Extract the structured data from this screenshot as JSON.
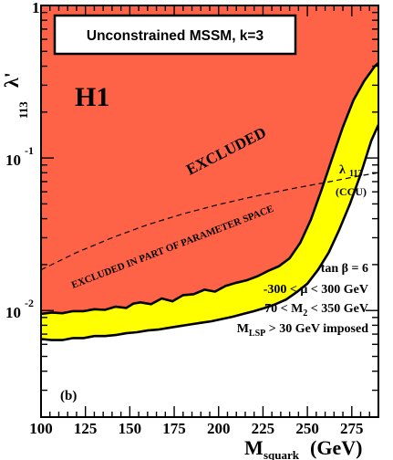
{
  "chart_data": {
    "type": "area",
    "title": "Unconstrained MSSM, k=3",
    "panel_label": "(b)",
    "experiment_label": "H1",
    "xlabel": "M",
    "xlabel_sub": "squark",
    "xlabel_unit": "(GeV)",
    "ylabel": "λ'",
    "ylabel_sub": "113",
    "xlim": [
      100,
      290
    ],
    "ylim": [
      0.002,
      1
    ],
    "yscale": "log",
    "x_ticks": [
      100,
      125,
      150,
      175,
      200,
      225,
      250,
      275
    ],
    "y_ticks": [
      {
        "value": 1,
        "mantissa": "1",
        "exponent": ""
      },
      {
        "value": 0.1,
        "mantissa": "10",
        "exponent": "-1"
      },
      {
        "value": 0.01,
        "mantissa": "10",
        "exponent": "-2"
      }
    ],
    "colors": {
      "excluded": "#ff6347",
      "partial": "#ffff00",
      "frame": "#000000"
    },
    "series": [
      {
        "name": "EXCLUDED",
        "x": [
          100,
          106,
          112,
          118,
          124,
          130,
          136,
          142,
          148,
          152,
          156,
          162,
          168,
          174,
          180,
          186,
          192,
          198,
          204,
          210,
          216,
          222,
          228,
          234,
          240,
          246,
          252,
          258,
          264,
          270,
          276,
          282,
          288,
          290
        ],
        "y": [
          0.0095,
          0.0097,
          0.0096,
          0.0099,
          0.0099,
          0.0102,
          0.0101,
          0.0106,
          0.0104,
          0.0111,
          0.0113,
          0.011,
          0.012,
          0.0115,
          0.0126,
          0.0128,
          0.0137,
          0.0133,
          0.0145,
          0.0152,
          0.0158,
          0.0168,
          0.0182,
          0.0195,
          0.022,
          0.0278,
          0.0395,
          0.062,
          0.1,
          0.16,
          0.24,
          0.32,
          0.4,
          0.42
        ]
      },
      {
        "name": "EXCLUDED IN PART OF PARAMETER SPACE",
        "x": [
          100,
          106,
          112,
          118,
          124,
          130,
          136,
          142,
          148,
          154,
          160,
          166,
          172,
          178,
          184,
          190,
          196,
          202,
          208,
          214,
          220,
          226,
          232,
          238,
          244,
          250,
          256,
          262,
          268,
          274,
          280,
          286,
          290
        ],
        "y": [
          0.0065,
          0.0064,
          0.0064,
          0.0066,
          0.0066,
          0.0068,
          0.0068,
          0.0069,
          0.0071,
          0.0072,
          0.0074,
          0.0075,
          0.0077,
          0.0079,
          0.0081,
          0.0083,
          0.0085,
          0.0088,
          0.0091,
          0.0095,
          0.0099,
          0.0104,
          0.011,
          0.0118,
          0.0132,
          0.015,
          0.0185,
          0.024,
          0.034,
          0.05,
          0.078,
          0.13,
          0.165
        ]
      },
      {
        "name": "λ 113 (CCU)",
        "x": [
          100,
          120,
          140,
          160,
          180,
          200,
          220,
          240,
          260,
          280,
          290
        ],
        "y": [
          0.0185,
          0.024,
          0.03,
          0.0365,
          0.043,
          0.0495,
          0.056,
          0.0625,
          0.069,
          0.0765,
          0.08
        ]
      }
    ],
    "annotations": {
      "excluded": "EXCLUDED",
      "partial": "EXCLUDED IN PART OF PARAMETER SPACE",
      "ccu_symbol": "λ",
      "ccu_sub": "113",
      "ccu_text": "(CCU)",
      "tanb": "tan β = 6",
      "mu": "-300 < μ < 300 GeV",
      "m2": "70 < M",
      "m2_sub": "2",
      "m2_tail": " < 350 GeV",
      "mlsp": "M",
      "mlsp_sub": "LSP",
      "mlsp_tail": " > 30 GeV imposed"
    }
  }
}
